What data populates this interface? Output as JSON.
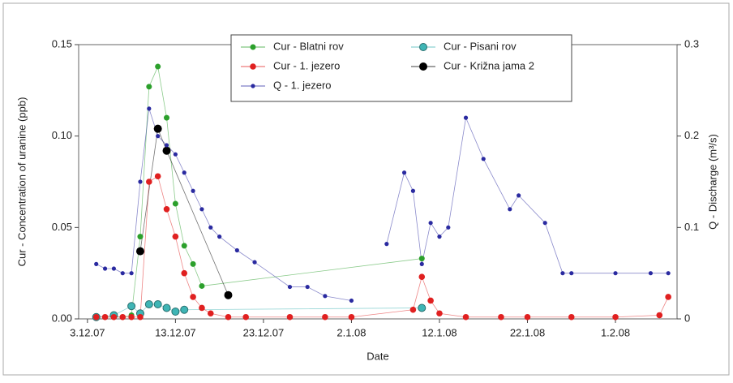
{
  "chart_data": {
    "type": "scatter",
    "xlabel": "Date",
    "ylabel": "Cur - Concentration of uranine (ppb)",
    "y2label": "Q - Discharge (m³/s)",
    "xlim": [
      "2007-12-02",
      "2008-02-08"
    ],
    "xticks": [
      {
        "value": "2007-12-03",
        "label": "3.12.07"
      },
      {
        "value": "2007-12-13",
        "label": "13.12.07"
      },
      {
        "value": "2007-12-23",
        "label": "23.12.07"
      },
      {
        "value": "2008-01-02",
        "label": "2.1.08"
      },
      {
        "value": "2008-01-12",
        "label": "12.1.08"
      },
      {
        "value": "2008-01-22",
        "label": "22.1.08"
      },
      {
        "value": "2008-02-01",
        "label": "1.2.08"
      }
    ],
    "ylim": [
      0,
      0.15
    ],
    "yticks": [
      {
        "value": 0,
        "label": "0.00"
      },
      0.05,
      {
        "value": 0.1,
        "label": "0.10"
      },
      0.15
    ],
    "y2lim": [
      0,
      0.3
    ],
    "y2ticks": [
      0,
      0.1,
      0.2,
      0.3
    ],
    "series": [
      {
        "name": "Cur - Blatni rov",
        "color": "#2ca02c",
        "axis": "y",
        "x": [
          "2007-12-05",
          "2007-12-06",
          "2007-12-07",
          "2007-12-08",
          "2007-12-09",
          "2007-12-10",
          "2007-12-11",
          "2007-12-12",
          "2007-12-13",
          "2007-12-14",
          "2007-12-15",
          "2007-12-16",
          "2008-01-10"
        ],
        "values": [
          0.001,
          0.001,
          0.001,
          0.002,
          0.045,
          0.127,
          0.138,
          0.11,
          0.063,
          0.04,
          0.03,
          0.018,
          0.033
        ]
      },
      {
        "name": "Cur - Pisani rov",
        "color": "#3fb5b5",
        "axis": "y",
        "x": [
          "2007-12-04",
          "2007-12-06",
          "2007-12-08",
          "2007-12-09",
          "2007-12-10",
          "2007-12-11",
          "2007-12-12",
          "2007-12-13",
          "2007-12-14",
          "2008-01-10"
        ],
        "values": [
          0.001,
          0.002,
          0.007,
          0.003,
          0.008,
          0.008,
          0.006,
          0.004,
          0.005,
          0.006
        ]
      },
      {
        "name": "Cur - 1. jezero",
        "color": "#e02020",
        "axis": "y",
        "x": [
          "2007-12-04",
          "2007-12-05",
          "2007-12-06",
          "2007-12-07",
          "2007-12-08",
          "2007-12-09",
          "2007-12-10",
          "2007-12-11",
          "2007-12-12",
          "2007-12-13",
          "2007-12-14",
          "2007-12-15",
          "2007-12-16",
          "2007-12-17",
          "2007-12-19",
          "2007-12-21",
          "2007-12-26",
          "2007-12-30",
          "2008-01-02",
          "2008-01-09",
          "2008-01-10",
          "2008-01-11",
          "2008-01-12",
          "2008-01-15",
          "2008-01-19",
          "2008-01-22",
          "2008-01-27",
          "2008-02-01",
          "2008-02-06",
          "2008-02-07"
        ],
        "values": [
          0.001,
          0.001,
          0.001,
          0.001,
          0.001,
          0.001,
          0.075,
          0.078,
          0.06,
          0.045,
          0.025,
          0.012,
          0.006,
          0.003,
          0.001,
          0.001,
          0.001,
          0.001,
          0.001,
          0.005,
          0.023,
          0.01,
          0.003,
          0.001,
          0.001,
          0.001,
          0.001,
          0.001,
          0.002,
          0.012
        ]
      },
      {
        "name": "Cur - Križna jama 2",
        "color": "#000000",
        "axis": "y",
        "x": [
          "2007-12-09",
          "2007-12-11",
          "2007-12-12",
          "2007-12-19"
        ],
        "values": [
          0.037,
          0.104,
          0.092,
          0.013
        ]
      },
      {
        "name": "Q - 1. jezero",
        "color": "#2a2aa0",
        "axis": "y2",
        "x": [
          "2007-12-04",
          "2007-12-05",
          "2007-12-06",
          "2007-12-07",
          "2007-12-08",
          "2007-12-09",
          "2007-12-10",
          "2007-12-11",
          "2007-12-12",
          "2007-12-13",
          "2007-12-14",
          "2007-12-15",
          "2007-12-16",
          "2007-12-17",
          "2007-12-18",
          "2007-12-20",
          "2007-12-22",
          "2007-12-26",
          "2007-12-28",
          "2007-12-30",
          "2008-01-02",
          "2008-01-04",
          "2008-01-06",
          "2008-01-08",
          "2008-01-09",
          "2008-01-10",
          "2008-01-11",
          "2008-01-12",
          "2008-01-13",
          "2008-01-15",
          "2008-01-17",
          "2008-01-20",
          "2008-01-21",
          "2008-01-24",
          "2008-01-26",
          "2008-01-27",
          "2008-02-01",
          "2008-02-05",
          "2008-02-07"
        ],
        "values": [
          0.06,
          0.055,
          0.055,
          0.05,
          0.05,
          0.15,
          0.23,
          0.2,
          0.19,
          0.18,
          0.16,
          0.14,
          0.12,
          0.1,
          0.09,
          0.075,
          0.062,
          0.035,
          0.035,
          0.025,
          0.02,
          null,
          0.082,
          0.16,
          0.14,
          0.06,
          0.105,
          0.09,
          0.1,
          0.22,
          0.175,
          0.12,
          0.135,
          0.105,
          0.05,
          0.05,
          0.05,
          0.05,
          0.05
        ]
      }
    ]
  }
}
